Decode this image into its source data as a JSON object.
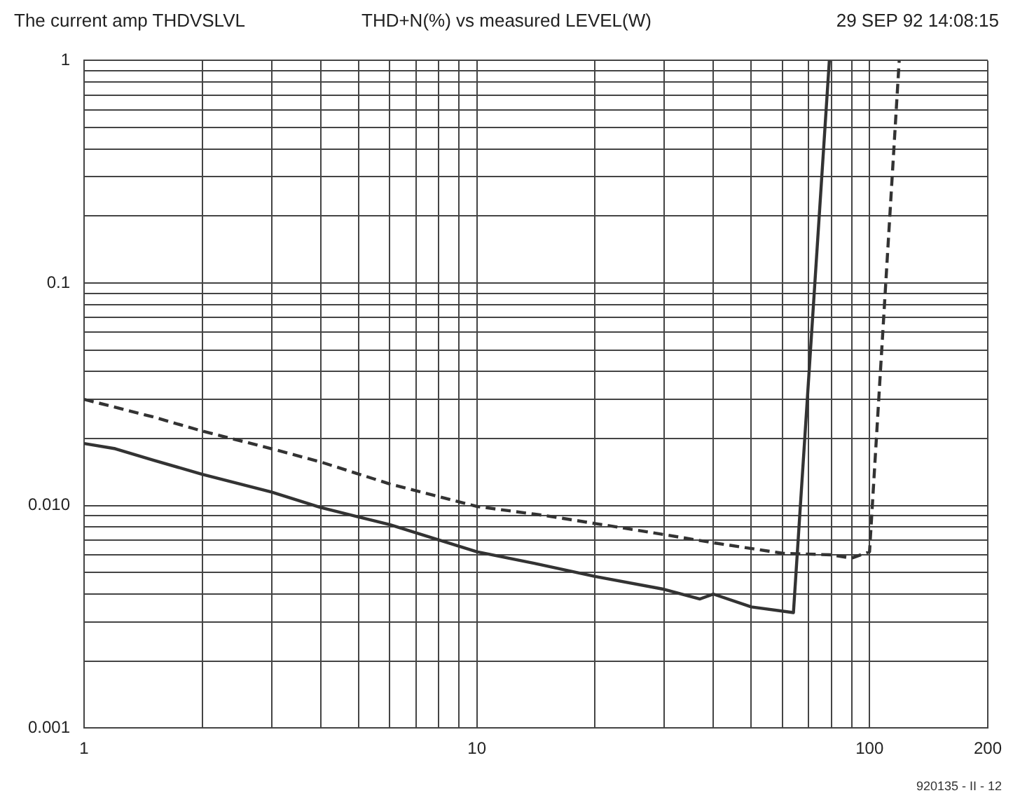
{
  "chart_data": {
    "type": "line",
    "title": "The current amp THDVSLVL",
    "subtitle": "THD+N(%)  vs measured   LEVEL(W)",
    "annotations": [
      "29 SEP 92 14:08:15",
      "920135 - II - 12"
    ],
    "log": "xy",
    "grid": true,
    "legend": false,
    "marker": "none",
    "xlim": [
      1,
      200
    ],
    "ylim": [
      0.001,
      1
    ],
    "xticks": [
      1,
      {
        "value": 2,
        "label": null
      },
      {
        "value": 3,
        "label": null
      },
      {
        "value": 4,
        "label": null
      },
      {
        "value": 5,
        "label": null
      },
      {
        "value": 6,
        "label": null
      },
      {
        "value": 7,
        "label": null
      },
      {
        "value": 8,
        "label": null
      },
      {
        "value": 9,
        "label": null
      },
      10,
      {
        "value": 20,
        "label": null
      },
      {
        "value": 30,
        "label": null
      },
      {
        "value": 40,
        "label": null
      },
      {
        "value": 50,
        "label": null
      },
      {
        "value": 60,
        "label": null
      },
      {
        "value": 70,
        "label": null
      },
      {
        "value": 80,
        "label": null
      },
      {
        "value": 90,
        "label": null
      },
      100,
      200
    ],
    "yticks": [
      0.001,
      {
        "value": 0.002,
        "label": null
      },
      {
        "value": 0.003,
        "label": null
      },
      {
        "value": 0.004,
        "label": null
      },
      {
        "value": 0.005,
        "label": null
      },
      {
        "value": 0.006,
        "label": null
      },
      {
        "value": 0.007,
        "label": null
      },
      {
        "value": 0.008,
        "label": null
      },
      {
        "value": 0.009,
        "label": null
      },
      {
        "value": 0.01,
        "label": "0.010"
      },
      {
        "value": 0.02,
        "label": null
      },
      {
        "value": 0.03,
        "label": null
      },
      {
        "value": 0.04,
        "label": null
      },
      {
        "value": 0.05,
        "label": null
      },
      {
        "value": 0.06,
        "label": null
      },
      {
        "value": 0.07,
        "label": null
      },
      {
        "value": 0.08,
        "label": null
      },
      {
        "value": 0.09,
        "label": null
      },
      0.1,
      {
        "value": 0.2,
        "label": null
      },
      {
        "value": 0.3,
        "label": null
      },
      {
        "value": 0.4,
        "label": null
      },
      {
        "value": 0.5,
        "label": null
      },
      {
        "value": 0.6,
        "label": null
      },
      {
        "value": 0.7,
        "label": null
      },
      {
        "value": 0.8,
        "label": null
      },
      {
        "value": 0.9,
        "label": null
      },
      1
    ],
    "series": [
      {
        "color": "#333333",
        "line_style": "solid",
        "x": [
          1,
          1.2,
          1.5,
          2,
          3,
          4,
          6,
          10,
          14,
          20,
          30,
          37,
          40,
          50,
          64,
          79
        ],
        "values": [
          0.019,
          0.018,
          0.016,
          0.0138,
          0.0115,
          0.0098,
          0.0082,
          0.0062,
          0.0055,
          0.0048,
          0.0042,
          0.0038,
          0.004,
          0.0035,
          0.0033,
          1
        ]
      },
      {
        "color": "#333333",
        "line_style": "dashed",
        "x": [
          1,
          1.5,
          2,
          3,
          4,
          6,
          10,
          15,
          20,
          30,
          40,
          60,
          80,
          90,
          100,
          119
        ],
        "values": [
          0.03,
          0.025,
          0.0216,
          0.018,
          0.0157,
          0.0125,
          0.0099,
          0.009,
          0.0083,
          0.0074,
          0.0068,
          0.0061,
          0.006,
          0.0058,
          0.0062,
          1
        ]
      }
    ]
  }
}
